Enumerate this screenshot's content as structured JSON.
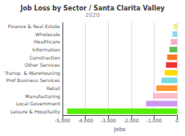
{
  "chart_data": {
    "type": "bar",
    "orientation": "horizontal",
    "title": "Job Loss by Sector / Santa Clarita Valley",
    "subtitle": "2020",
    "xlabel": "Jobs",
    "categories": [
      "Finance & Real Estate",
      "Wholesale",
      "Healthcare",
      "Information",
      "Construction",
      "Other Services",
      "Transp. & Warehousing",
      "Prof Business Services",
      "Retail",
      "Manufacturing",
      "Local Government",
      "Leisure & Hospitality"
    ],
    "values": [
      -150,
      -200,
      -270,
      -330,
      -430,
      -480,
      -540,
      -680,
      -900,
      -1050,
      -1350,
      -4800
    ],
    "colors": [
      "#eeee88",
      "#88ddee",
      "#ffaacc",
      "#66bb55",
      "#ff7722",
      "#ee3333",
      "#ffdd00",
      "#77dddd",
      "#ff9933",
      "#ffbbcc",
      "#cc99ee",
      "#55ee00"
    ],
    "xlim": [
      -5000,
      0
    ],
    "xticks": [
      {
        "value": -5000,
        "label": "-5,000"
      },
      {
        "value": -4000,
        "label": "-4,000"
      },
      {
        "value": -3000,
        "label": "-3,000"
      },
      {
        "value": -2000,
        "label": "-2,000"
      },
      {
        "value": -1000,
        "label": "-1,000"
      },
      0
    ],
    "grid": true
  }
}
